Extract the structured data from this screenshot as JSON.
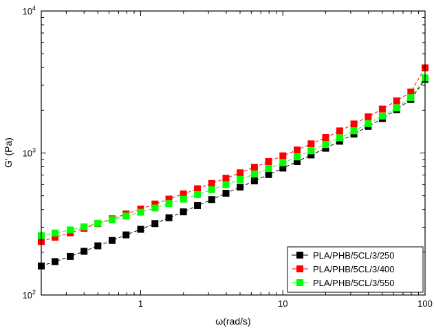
{
  "chart_data": {
    "type": "scatter",
    "title": "",
    "xlabel": "ω(rad/s)",
    "ylabel": "G' (Pa)",
    "xscale": "log",
    "yscale": "log",
    "xlim": [
      0.2,
      100
    ],
    "ylim": [
      100,
      10000
    ],
    "x_ticks": [
      {
        "value": 1,
        "label": "1"
      },
      {
        "value": 10,
        "label": "10"
      },
      {
        "value": 100,
        "label": "100"
      }
    ],
    "y_ticks": [
      {
        "value": 100,
        "base": "10",
        "exp": "2"
      },
      {
        "value": 1000,
        "base": "10",
        "exp": "3"
      },
      {
        "value": 10000,
        "base": "10",
        "exp": "4"
      }
    ],
    "grid": false,
    "legend_position": "bottom-right",
    "x": [
      0.2,
      0.25,
      0.32,
      0.4,
      0.5,
      0.63,
      0.79,
      1,
      1.26,
      1.58,
      2,
      2.51,
      3.16,
      3.98,
      5.01,
      6.31,
      7.94,
      10,
      12.6,
      15.8,
      20,
      25.1,
      31.6,
      39.8,
      50.1,
      63.1,
      79.4,
      100
    ],
    "series": [
      {
        "name": "PLA/PHB/5CL/3/250",
        "color": "#000000",
        "values": [
          160,
          172,
          187,
          203,
          222,
          242,
          265,
          290,
          318,
          350,
          385,
          426,
          470,
          520,
          575,
          636,
          705,
          783,
          870,
          968,
          1080,
          1210,
          1360,
          1540,
          1750,
          2020,
          2380,
          3300
        ]
      },
      {
        "name": "PLA/PHB/5CL/3/400",
        "color": "#ff0000",
        "values": [
          238,
          255,
          274,
          295,
          318,
          344,
          372,
          403,
          437,
          474,
          515,
          560,
          610,
          664,
          725,
          793,
          870,
          955,
          1050,
          1160,
          1285,
          1430,
          1600,
          1800,
          2040,
          2330,
          2690,
          3980
        ]
      },
      {
        "name": "PLA/PHB/5CL/3/550",
        "color": "#00ff00",
        "values": [
          262,
          273,
          287,
          302,
          320,
          339,
          360,
          383,
          410,
          440,
          473,
          510,
          552,
          599,
          652,
          711,
          777,
          853,
          938,
          1036,
          1150,
          1280,
          1430,
          1610,
          1820,
          2080,
          2450,
          3380
        ]
      }
    ]
  }
}
